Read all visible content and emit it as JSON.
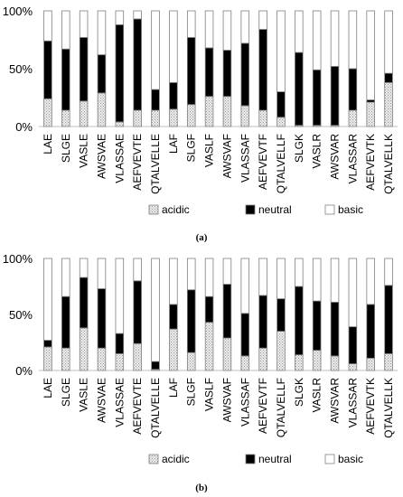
{
  "chart_data": [
    {
      "type": "bar",
      "stacked": true,
      "panel_label": "(a)",
      "categories": [
        "LAE",
        "SLGE",
        "VASLE",
        "AWSVAE",
        "VLASSAE",
        "AEFVEVTE",
        "QTALVELLE",
        "LAF",
        "SLGF",
        "VASLF",
        "AWSVAF",
        "VLASSAF",
        "AEFVEVTF",
        "QTALVELLF",
        "SLGK",
        "VASLR",
        "AWSVAR",
        "VLASSAR",
        "AEFVEVTK",
        "QTALVELLK"
      ],
      "series": [
        {
          "name": "acidic",
          "values": [
            24,
            14,
            22,
            29,
            4,
            14,
            14,
            15,
            19,
            26,
            26,
            18,
            14,
            8,
            1,
            1,
            1,
            14,
            21,
            38
          ]
        },
        {
          "name": "neutral",
          "values": [
            50,
            53,
            55,
            33,
            84,
            79,
            18,
            23,
            58,
            42,
            40,
            54,
            70,
            22,
            63,
            48,
            51,
            36,
            2,
            8
          ]
        },
        {
          "name": "basic",
          "values": [
            26,
            33,
            23,
            38,
            12,
            7,
            68,
            62,
            23,
            32,
            34,
            28,
            16,
            70,
            36,
            51,
            48,
            50,
            77,
            54
          ]
        }
      ],
      "yticks": [
        "0%",
        "50%",
        "100%"
      ],
      "ylim": [
        0,
        100
      ],
      "legend": "bottom"
    },
    {
      "type": "bar",
      "stacked": true,
      "panel_label": "(b)",
      "categories": [
        "LAE",
        "SLGE",
        "VASLE",
        "AWSVAE",
        "VLASSAE",
        "AEFVEVTE",
        "QTALVELLE",
        "LAF",
        "SLGF",
        "VASLF",
        "AWSVAF",
        "VLASSAF",
        "AEFVEVTF",
        "QTALVELLF",
        "SLGK",
        "VASLR",
        "AWSVAR",
        "VLASSAR",
        "AEFVEVTK",
        "QTALVELLK"
      ],
      "series": [
        {
          "name": "acidic",
          "values": [
            21,
            20,
            38,
            20,
            15,
            24,
            1,
            37,
            16,
            43,
            29,
            13,
            20,
            35,
            14,
            18,
            13,
            6,
            11,
            15
          ]
        },
        {
          "name": "neutral",
          "values": [
            6,
            46,
            45,
            53,
            18,
            56,
            7,
            22,
            56,
            23,
            48,
            38,
            47,
            29,
            61,
            44,
            48,
            33,
            48,
            61
          ]
        },
        {
          "name": "basic",
          "values": [
            73,
            34,
            17,
            27,
            67,
            20,
            92,
            41,
            28,
            34,
            23,
            49,
            33,
            36,
            25,
            38,
            39,
            61,
            41,
            24
          ]
        }
      ],
      "yticks": [
        "0%",
        "50%",
        "100%"
      ],
      "ylim": [
        0,
        100
      ],
      "legend": "bottom"
    }
  ],
  "colors": {
    "acidic": "#dedede",
    "neutral": "#000000",
    "basic": "#ffffff",
    "stroke": "#7f7f7f"
  }
}
